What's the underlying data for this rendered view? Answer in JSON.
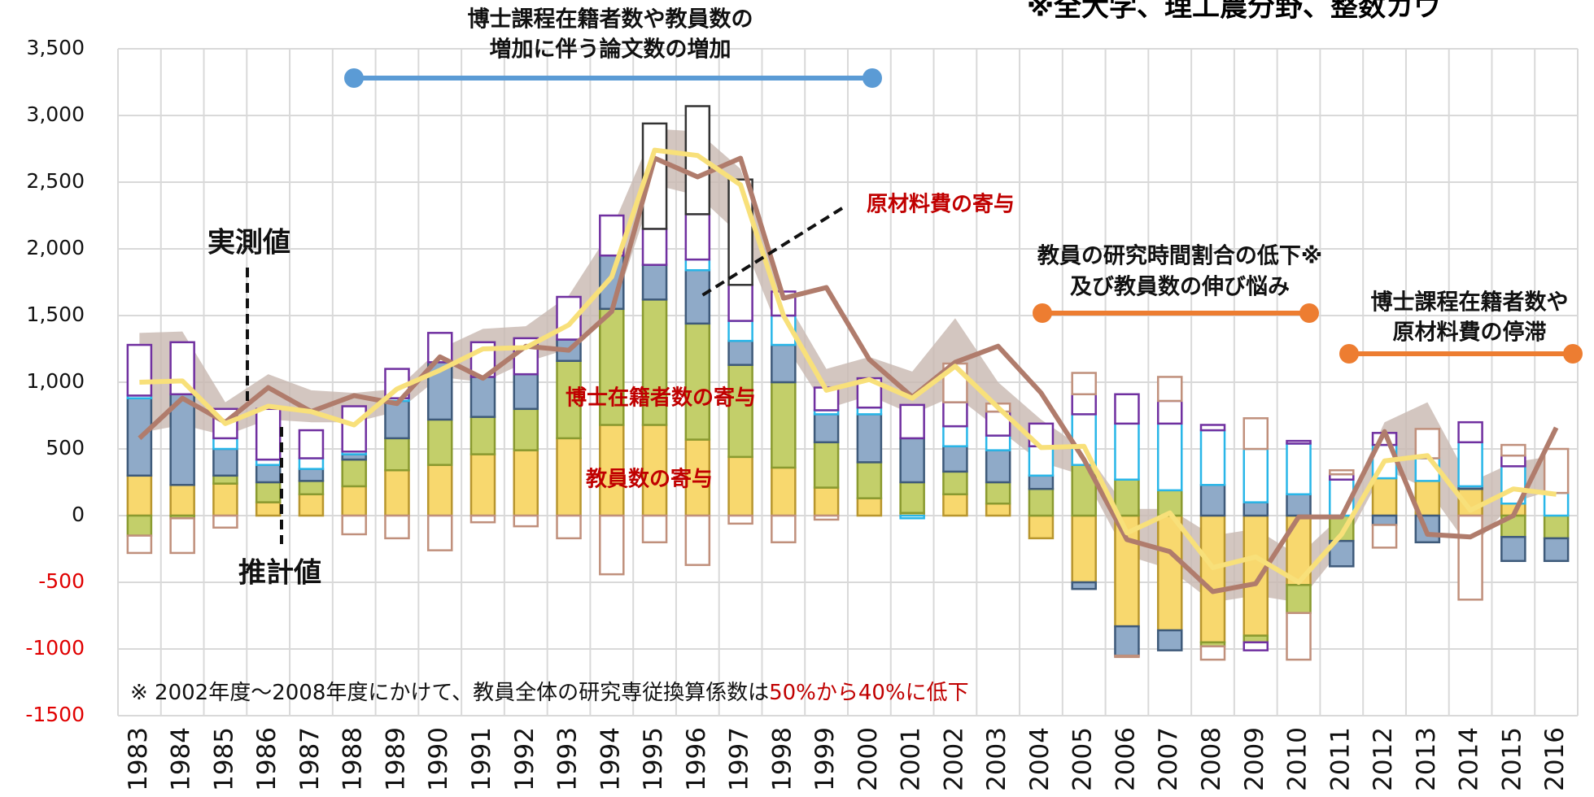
{
  "chart_data": {
    "type": "bar",
    "stacked": true,
    "categories": [
      "1983",
      "1984",
      "1985",
      "1986",
      "1987",
      "1988",
      "1989",
      "1990",
      "1991",
      "1992",
      "1993",
      "1994",
      "1995",
      "1996",
      "1997",
      "1998",
      "1999",
      "2000",
      "2001",
      "2002",
      "2003",
      "2004",
      "2005",
      "2006",
      "2007",
      "2008",
      "2009",
      "2010",
      "2011",
      "2012",
      "2013",
      "2014",
      "2015",
      "2016"
    ],
    "ylim": [
      -1500,
      3500
    ],
    "yticks": [
      -1500,
      -1000,
      -500,
      0,
      {
        "value": 500,
        "label": "500"
      },
      {
        "value": 1000,
        "label": "1,000"
      },
      {
        "value": 1500,
        "label": "1,500"
      },
      {
        "value": 2000,
        "label": "2,000"
      },
      {
        "value": 2500,
        "label": "2,500"
      },
      {
        "value": 3000,
        "label": "3,000"
      },
      {
        "value": 3500,
        "label": "3,500"
      }
    ],
    "grid": true,
    "series": [
      {
        "color": "#f8d86e",
        "stroke": "#b8962e",
        "values": [
          300,
          230,
          240,
          100,
          160,
          220,
          340,
          380,
          460,
          490,
          580,
          680,
          680,
          570,
          440,
          360,
          210,
          130,
          20,
          160,
          90,
          -170,
          -500,
          -830,
          -860,
          -950,
          -900,
          -520,
          null,
          280,
          260,
          200,
          90,
          null
        ]
      },
      {
        "color": "#c3cf6a",
        "stroke": "#8a9a30",
        "values": [
          -150,
          -20,
          60,
          150,
          100,
          200,
          240,
          340,
          280,
          310,
          580,
          870,
          940,
          870,
          690,
          640,
          340,
          270,
          230,
          170,
          160,
          200,
          380,
          270,
          190,
          -30,
          -50,
          -210,
          -190,
          null,
          null,
          null,
          -160,
          -170
        ]
      },
      {
        "color": "#8faac8",
        "stroke": "#3e5a7a",
        "values": [
          580,
          680,
          200,
          130,
          90,
          40,
          280,
          430,
          300,
          260,
          160,
          400,
          260,
          400,
          180,
          280,
          210,
          360,
          330,
          190,
          240,
          100,
          -50,
          -220,
          -150,
          230,
          100,
          160,
          -190,
          -70,
          -200,
          20,
          -180,
          -170
        ]
      },
      {
        "color": "#ffffff",
        "stroke": "#29b6e8",
        "values": [
          20,
          null,
          80,
          40,
          80,
          20,
          20,
          null,
          null,
          null,
          null,
          null,
          null,
          80,
          150,
          220,
          30,
          50,
          -20,
          150,
          110,
          220,
          380,
          420,
          500,
          410,
          400,
          380,
          270,
          250,
          170,
          330,
          280,
          170
        ]
      },
      {
        "color": "#ffffff",
        "stroke": "#7030a0",
        "values": [
          380,
          390,
          220,
          380,
          210,
          340,
          220,
          220,
          260,
          270,
          320,
          300,
          270,
          340,
          270,
          180,
          170,
          220,
          250,
          180,
          180,
          170,
          150,
          220,
          170,
          40,
          -60,
          20,
          40,
          90,
          null,
          150,
          80,
          null
        ]
      },
      {
        "color": "#ffffff",
        "stroke": "#333333",
        "values": [
          null,
          null,
          null,
          null,
          null,
          null,
          null,
          null,
          null,
          null,
          null,
          null,
          790,
          810,
          790,
          null,
          null,
          null,
          null,
          null,
          null,
          null,
          null,
          null,
          null,
          null,
          null,
          null,
          null,
          null,
          null,
          null,
          null,
          null
        ]
      },
      {
        "color": "#ffffff",
        "stroke": "#c0907c",
        "values": [
          -130,
          -260,
          -90,
          null,
          null,
          -140,
          -170,
          -260,
          -50,
          -80,
          -170,
          -440,
          -200,
          -370,
          -60,
          -200,
          -30,
          null,
          null,
          290,
          60,
          null,
          160,
          -10,
          180,
          -100,
          230,
          -350,
          30,
          -170,
          220,
          -630,
          80,
          330
        ]
      }
    ],
    "band": {
      "color": "#c8b8b0",
      "upper": [
        1370,
        1380,
        850,
        1060,
        940,
        920,
        950,
        1250,
        1400,
        1420,
        1650,
        2150,
        2900,
        2880,
        2600,
        1650,
        1100,
        1190,
        1080,
        1480,
        1000,
        720,
        500,
        50,
        50,
        -150,
        -100,
        -300,
        0,
        700,
        850,
        250,
        400,
        450
      ],
      "lower": [
        620,
        680,
        600,
        720,
        700,
        700,
        780,
        1040,
        1000,
        1150,
        1250,
        1500,
        2480,
        2400,
        2100,
        1300,
        800,
        900,
        760,
        900,
        650,
        400,
        300,
        -300,
        -400,
        -650,
        -600,
        -650,
        -250,
        350,
        200,
        -250,
        100,
        200
      ]
    },
    "lines": [
      {
        "color": "#b07c6c",
        "values": [
          580,
          880,
          700,
          960,
          780,
          900,
          840,
          1190,
          1030,
          1270,
          1240,
          1530,
          2680,
          2540,
          2680,
          1630,
          1710,
          1170,
          890,
          1150,
          1270,
          920,
          420,
          -180,
          -270,
          -570,
          -510,
          -10,
          -10,
          630,
          -140,
          -160,
          0,
          660
        ]
      },
      {
        "color": "#f8e07a",
        "values": [
          1000,
          1010,
          690,
          820,
          780,
          680,
          950,
          1090,
          1250,
          1260,
          1430,
          1790,
          2740,
          2700,
          2480,
          1500,
          940,
          1020,
          880,
          1120,
          810,
          510,
          520,
          -130,
          20,
          -390,
          -310,
          -500,
          -140,
          410,
          450,
          40,
          200,
          160
        ]
      }
    ],
    "annotations": {
      "corner_note": "※全大学、理工農分野、整数カウ",
      "period1": [
        "博士課程在籍者数や教員数の",
        "増加に伴う論文数の増加"
      ],
      "period2": [
        "教員の研究時間割合の低下※",
        "及び教員数の伸び悩み"
      ],
      "period3": [
        "博士課程在籍者数や",
        "原材料費の停滞"
      ],
      "measured": "実測値",
      "estimated": "推計値",
      "materials": "原材料費の寄与",
      "doctoral": "博士在籍者数の寄与",
      "faculty": "教員数の寄与",
      "footnote": "※ 2002年度～2008年度にかけて、教員全体の研究専従換算係数は",
      "footnote_highlight": "50%から40%に低下"
    }
  }
}
